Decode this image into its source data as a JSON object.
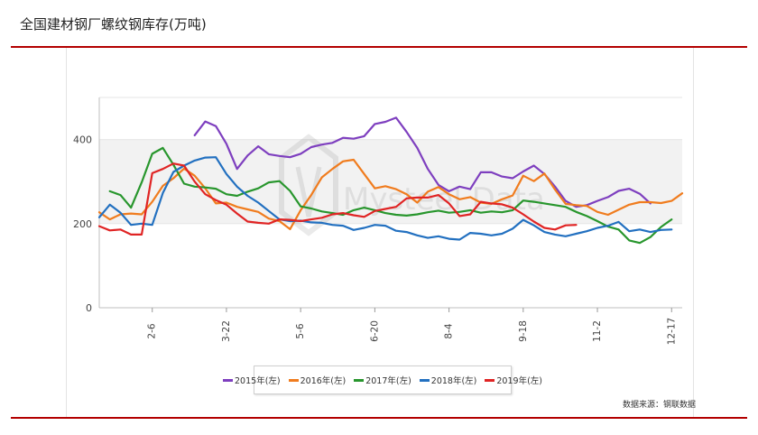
{
  "title": "全国建材钢厂螺纹钢库存(万吨)",
  "source_note": "数据来源：钢联数据",
  "watermark": "Mysteel Data",
  "colors": {
    "accent_rule": "#b30000",
    "grid": "#e6e6e6",
    "band": "#f2f2f2"
  },
  "chart_data": {
    "type": "line",
    "title": "全国建材钢厂螺纹钢库存(万吨)",
    "xlabel": "",
    "ylabel": "",
    "ylim": [
      0,
      500
    ],
    "yticks": [
      0,
      200,
      400
    ],
    "week_count": 52,
    "xticks": [
      {
        "label": "2-6",
        "week": 5
      },
      {
        "label": "3-22",
        "week": 12
      },
      {
        "label": "5-6",
        "week": 19
      },
      {
        "label": "6-20",
        "week": 26
      },
      {
        "label": "8-4",
        "week": 33
      },
      {
        "label": "9-18",
        "week": 40
      },
      {
        "label": "11-2",
        "week": 47
      },
      {
        "label": "12-17",
        "week": 54
      }
    ],
    "legend_position": "bottom",
    "series": [
      {
        "name": "2015年(左)",
        "color": "#7e3fbf",
        "start_week": 9,
        "values": [
          410,
          443,
          432,
          390,
          330,
          362,
          384,
          365,
          361,
          358,
          366,
          382,
          388,
          392,
          404,
          402,
          408,
          437,
          442,
          452,
          418,
          380,
          330,
          292,
          277,
          288,
          282,
          322,
          322,
          312,
          308,
          324,
          338,
          318,
          288,
          254,
          240,
          244,
          254,
          263,
          278,
          283,
          271,
          248
        ]
      },
      {
        "name": "2016年(左)",
        "color": "#f07c1e",
        "start_week": 0,
        "values": [
          227,
          210,
          222,
          224,
          222,
          252,
          290,
          308,
          331,
          314,
          284,
          248,
          250,
          240,
          234,
          228,
          212,
          206,
          187,
          232,
          268,
          310,
          330,
          348,
          352,
          318,
          284,
          289,
          282,
          270,
          250,
          276,
          287,
          270,
          258,
          263,
          250,
          247,
          258,
          267,
          314,
          301,
          319,
          281,
          247,
          244,
          242,
          228,
          221,
          233,
          245,
          251,
          251,
          249,
          254,
          272
        ]
      },
      {
        "name": "2017年(左)",
        "color": "#28962d",
        "start_week": 1,
        "values": [
          277,
          268,
          238,
          298,
          366,
          380,
          340,
          295,
          288,
          286,
          283,
          270,
          266,
          276,
          284,
          298,
          301,
          278,
          241,
          236,
          229,
          225,
          221,
          232,
          238,
          232,
          225,
          221,
          219,
          222,
          227,
          231,
          226,
          228,
          232,
          226,
          229,
          227,
          232,
          255,
          252,
          248,
          244,
          240,
          228,
          218,
          206,
          193,
          186,
          160,
          154,
          168,
          192,
          210
        ]
      },
      {
        "name": "2018年(左)",
        "color": "#2270c0",
        "start_week": 0,
        "values": [
          215,
          245,
          226,
          197,
          200,
          197,
          273,
          323,
          338,
          350,
          357,
          358,
          318,
          288,
          266,
          250,
          230,
          210,
          206,
          207,
          203,
          202,
          197,
          195,
          185,
          190,
          197,
          195,
          183,
          180,
          172,
          166,
          170,
          164,
          162,
          178,
          176,
          172,
          176,
          188,
          209,
          196,
          180,
          174,
          170,
          176,
          182,
          190,
          195,
          204,
          182,
          186,
          180,
          185,
          186
        ]
      },
      {
        "name": "2019年(左)",
        "color": "#e02424",
        "start_week": 0,
        "values": [
          194,
          184,
          186,
          174,
          174,
          320,
          330,
          343,
          338,
          300,
          270,
          256,
          245,
          224,
          205,
          202,
          200,
          210,
          209,
          206,
          210,
          214,
          222,
          225,
          220,
          216,
          230,
          235,
          240,
          260,
          262,
          262,
          268,
          248,
          218,
          222,
          252,
          248,
          246,
          238,
          222,
          205,
          190,
          186,
          196,
          197
        ]
      }
    ]
  }
}
